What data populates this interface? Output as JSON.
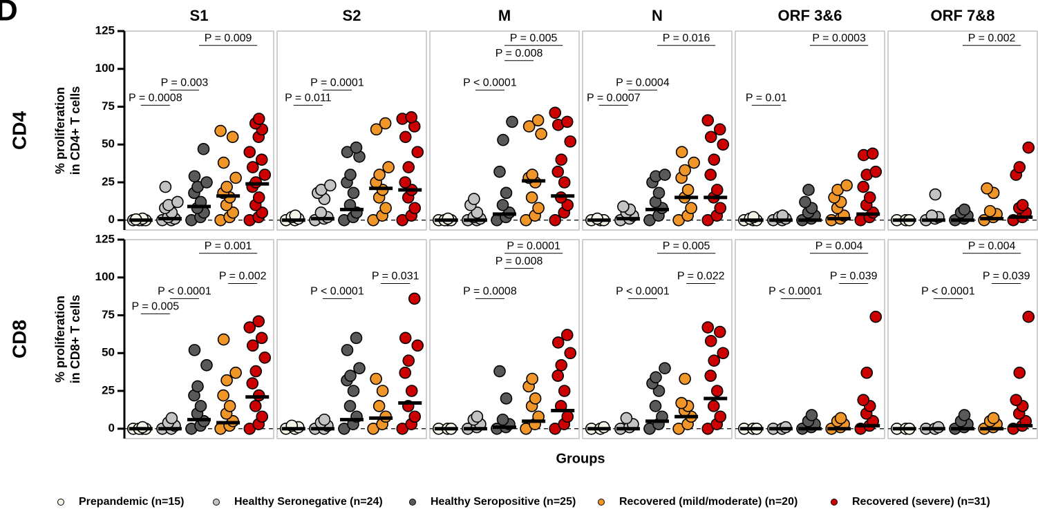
{
  "panel_label": "D",
  "xlabel": "Groups",
  "legend": [
    {
      "name": "Prepandemic (n=15)",
      "color": "#f4f4e8"
    },
    {
      "name": "Healthy Seronegative (n=24)",
      "color": "#c3c3c3"
    },
    {
      "name": "Healthy Seropositive (n=25)",
      "color": "#595959"
    },
    {
      "name": "Recovered (mild/moderate) (n=20)",
      "color": "#f09628"
    },
    {
      "name": "Recovered (severe) (n=31)",
      "color": "#cc0000"
    }
  ],
  "chart_data": [
    {
      "type": "strip",
      "title": "S1",
      "row_label": "CD4",
      "ylabel": [
        "% proliferation",
        "in CD4+ T cells"
      ],
      "ylim": [
        -6.5,
        125
      ],
      "yticks": [
        0,
        25,
        50,
        75,
        100,
        125
      ],
      "hline": 0,
      "series": [
        {
          "values": [
            0,
            0,
            0,
            0,
            1,
            0.5
          ],
          "median": 0
        },
        {
          "values": [
            0,
            0,
            1,
            2,
            5,
            8,
            10,
            12,
            22
          ],
          "median": 1
        },
        {
          "values": [
            0,
            2,
            5,
            8,
            12,
            18,
            22,
            25,
            29,
            47
          ],
          "median": 9
        },
        {
          "values": [
            0,
            2,
            5,
            10,
            15,
            18,
            22,
            28,
            38,
            55,
            59
          ],
          "median": 16
        },
        {
          "values": [
            0,
            2,
            5,
            10,
            15,
            22,
            25,
            30,
            35,
            40,
            45,
            55,
            60,
            64,
            67
          ],
          "median": 24
        }
      ],
      "annotations": [
        {
          "text": "P = 0.009",
          "x": [
            2,
            4
          ],
          "y": 115.5
        },
        {
          "text": "P = 0.003",
          "x": [
            1,
            2
          ],
          "y": 86
        },
        {
          "text": "P = 0.0008",
          "x": [
            0,
            1
          ],
          "y": 76
        }
      ]
    },
    {
      "type": "strip",
      "title": "S2",
      "ylim": [
        -6.5,
        125
      ],
      "hline": 0,
      "series": [
        {
          "values": [
            0,
            0,
            1,
            2,
            3
          ],
          "median": 0
        },
        {
          "values": [
            0,
            1,
            2,
            5,
            14,
            18,
            20,
            23
          ],
          "median": 1
        },
        {
          "values": [
            0,
            2,
            5,
            10,
            18,
            25,
            30,
            42,
            45,
            48
          ],
          "median": 7
        },
        {
          "values": [
            0,
            3,
            8,
            15,
            20,
            25,
            30,
            35,
            60,
            64
          ],
          "median": 21
        },
        {
          "values": [
            0,
            3,
            8,
            15,
            20,
            25,
            35,
            45,
            55,
            62,
            67,
            68
          ],
          "median": 20
        }
      ],
      "annotations": [
        {
          "text": "P = 0.0001",
          "x": [
            1,
            2
          ],
          "y": 86
        },
        {
          "text": "P = 0.011",
          "x": [
            0,
            1
          ],
          "y": 76
        }
      ]
    },
    {
      "type": "strip",
      "title": "M",
      "ylim": [
        -6.5,
        125
      ],
      "hline": 0,
      "series": [
        {
          "values": [
            0,
            0,
            0,
            0,
            1
          ],
          "median": 0
        },
        {
          "values": [
            0,
            0,
            1,
            2,
            5,
            10,
            14
          ],
          "median": 0
        },
        {
          "values": [
            0,
            2,
            5,
            10,
            18,
            32,
            53,
            65
          ],
          "median": 4
        },
        {
          "values": [
            0,
            3,
            8,
            15,
            25,
            28,
            30,
            57,
            62,
            66
          ],
          "median": 26
        },
        {
          "values": [
            0,
            5,
            10,
            15,
            25,
            32,
            40,
            52,
            63,
            65,
            71
          ],
          "median": 16
        }
      ],
      "annotations": [
        {
          "text": "P = 0.005",
          "x": [
            2,
            4
          ],
          "y": 115.5
        },
        {
          "text": "P = 0.008",
          "x": [
            2,
            3
          ],
          "y": 105.5
        },
        {
          "text": "P < 0.0001",
          "x": [
            1,
            2
          ],
          "y": 86
        }
      ]
    },
    {
      "type": "strip",
      "title": "N",
      "ylim": [
        -6.5,
        125
      ],
      "hline": 0,
      "series": [
        {
          "values": [
            0,
            0,
            0,
            1
          ],
          "median": 0
        },
        {
          "values": [
            0,
            1,
            3,
            5,
            7,
            9
          ],
          "median": 1
        },
        {
          "values": [
            0,
            3,
            8,
            12,
            18,
            25,
            29,
            30
          ],
          "median": 7
        },
        {
          "values": [
            0,
            3,
            8,
            15,
            20,
            28,
            33,
            38,
            45
          ],
          "median": 15
        },
        {
          "values": [
            0,
            3,
            8,
            15,
            20,
            30,
            40,
            50,
            55,
            60,
            66
          ],
          "median": 15
        }
      ],
      "annotations": [
        {
          "text": "P = 0.016",
          "x": [
            2,
            4
          ],
          "y": 115.5
        },
        {
          "text": "P = 0.0004",
          "x": [
            1,
            2
          ],
          "y": 86
        },
        {
          "text": "P = 0.0007",
          "x": [
            0,
            1
          ],
          "y": 76
        }
      ]
    },
    {
      "type": "strip",
      "title": "ORF 3&6",
      "ylim": [
        -6.5,
        125
      ],
      "hline": 0,
      "series": [
        {
          "values": [
            0,
            0,
            0,
            1,
            2
          ],
          "median": 0
        },
        {
          "values": [
            0,
            0,
            1,
            2,
            3
          ],
          "median": 0
        },
        {
          "values": [
            0,
            1,
            3,
            5,
            8,
            12,
            20
          ],
          "median": 0
        },
        {
          "values": [
            0,
            1,
            3,
            8,
            12,
            15,
            20,
            23
          ],
          "median": 1
        },
        {
          "values": [
            0,
            2,
            5,
            10,
            15,
            22,
            30,
            32,
            43,
            44
          ],
          "median": 4
        }
      ],
      "annotations": [
        {
          "text": "P = 0.0003",
          "x": [
            2,
            4
          ],
          "y": 115.5
        },
        {
          "text": "P = 0.01",
          "x": [
            0,
            1
          ],
          "y": 76
        }
      ]
    },
    {
      "type": "strip",
      "title": "ORF 7&8",
      "ylim": [
        -6.5,
        125
      ],
      "hline": 0,
      "series": [
        {
          "values": [
            0,
            0,
            0
          ],
          "median": 0
        },
        {
          "values": [
            0,
            1,
            2,
            3,
            17
          ],
          "median": 0
        },
        {
          "values": [
            0,
            1,
            3,
            5,
            7
          ],
          "median": 0
        },
        {
          "values": [
            0,
            2,
            4,
            6,
            18,
            21
          ],
          "median": 1
        },
        {
          "values": [
            0,
            2,
            5,
            8,
            10,
            30,
            35,
            48
          ],
          "median": 2
        }
      ],
      "annotations": [
        {
          "text": "P = 0.002",
          "x": [
            2,
            4
          ],
          "y": 115.5
        }
      ]
    },
    {
      "type": "strip",
      "row_label": "CD8",
      "ylabel": [
        "% proliferation",
        "in CD8+ T cells"
      ],
      "ylim": [
        -6.5,
        125
      ],
      "yticks": [
        0,
        25,
        50,
        75,
        100,
        125
      ],
      "hline": 0,
      "series": [
        {
          "values": [
            0,
            0,
            0,
            0,
            1
          ],
          "median": 0
        },
        {
          "values": [
            0,
            0,
            2,
            4,
            7
          ],
          "median": 0
        },
        {
          "values": [
            0,
            2,
            5,
            10,
            15,
            22,
            28,
            42,
            52
          ],
          "median": 6
        },
        {
          "values": [
            0,
            2,
            5,
            10,
            15,
            22,
            32,
            37,
            59
          ],
          "median": 4
        },
        {
          "values": [
            0,
            3,
            8,
            15,
            22,
            30,
            38,
            47,
            55,
            60,
            67,
            71
          ],
          "median": 21
        }
      ],
      "annotations": [
        {
          "text": "P = 0.001",
          "x": [
            2,
            4
          ],
          "y": 116
        },
        {
          "text": "P = 0.002",
          "x": [
            3,
            4
          ],
          "y": 96
        },
        {
          "text": "P < 0.0001",
          "x": [
            1,
            2
          ],
          "y": 86
        },
        {
          "text": "P = 0.005",
          "x": [
            0,
            1
          ],
          "y": 76
        }
      ]
    },
    {
      "type": "strip",
      "ylim": [
        -6.5,
        125
      ],
      "hline": 0,
      "series": [
        {
          "values": [
            0,
            0,
            1,
            2
          ],
          "median": 0
        },
        {
          "values": [
            0,
            0,
            2,
            4,
            6
          ],
          "median": 0
        },
        {
          "values": [
            0,
            3,
            8,
            15,
            25,
            32,
            35,
            40,
            52,
            60
          ],
          "median": 6
        },
        {
          "values": [
            0,
            3,
            8,
            15,
            25,
            33
          ],
          "median": 7
        },
        {
          "values": [
            0,
            3,
            8,
            15,
            25,
            37,
            45,
            55,
            60,
            86
          ],
          "median": 17
        }
      ],
      "annotations": [
        {
          "text": "P = 0.031",
          "x": [
            3,
            4
          ],
          "y": 96
        },
        {
          "text": "P < 0.0001",
          "x": [
            1,
            2
          ],
          "y": 86
        }
      ]
    },
    {
      "type": "strip",
      "ylim": [
        -6.5,
        125
      ],
      "hline": 0,
      "series": [
        {
          "values": [
            0,
            0,
            0
          ],
          "median": 0
        },
        {
          "values": [
            0,
            1,
            3,
            6,
            8
          ],
          "median": 0
        },
        {
          "values": [
            0,
            1,
            3,
            6,
            20,
            38
          ],
          "median": 1
        },
        {
          "values": [
            0,
            3,
            8,
            15,
            20,
            28,
            33
          ],
          "median": 5
        },
        {
          "values": [
            0,
            3,
            8,
            15,
            25,
            35,
            42,
            50,
            57,
            62
          ],
          "median": 12
        }
      ],
      "annotations": [
        {
          "text": "P = 0.0001",
          "x": [
            2,
            4
          ],
          "y": 116
        },
        {
          "text": "P = 0.008",
          "x": [
            2,
            3
          ],
          "y": 106
        },
        {
          "text": "P = 0.0008",
          "x": [
            1,
            2
          ],
          "y": 86
        }
      ]
    },
    {
      "type": "strip",
      "ylim": [
        -6.5,
        125
      ],
      "hline": 0,
      "series": [
        {
          "values": [
            0,
            0,
            1
          ],
          "median": 0
        },
        {
          "values": [
            0,
            1,
            3,
            7
          ],
          "median": 0
        },
        {
          "values": [
            0,
            3,
            8,
            15,
            25,
            30,
            34,
            40
          ],
          "median": 5
        },
        {
          "values": [
            0,
            3,
            8,
            12,
            15,
            17,
            33
          ],
          "median": 8
        },
        {
          "values": [
            0,
            3,
            8,
            15,
            25,
            35,
            45,
            50,
            58,
            64,
            67
          ],
          "median": 20
        }
      ],
      "annotations": [
        {
          "text": "P = 0.005",
          "x": [
            2,
            4
          ],
          "y": 116
        },
        {
          "text": "P = 0.022",
          "x": [
            3,
            4
          ],
          "y": 96
        },
        {
          "text": "P < 0.0001",
          "x": [
            1,
            2
          ],
          "y": 86
        }
      ]
    },
    {
      "type": "strip",
      "ylim": [
        -6.5,
        125
      ],
      "hline": 0,
      "series": [
        {
          "values": [
            0,
            0,
            0
          ],
          "median": 0
        },
        {
          "values": [
            0,
            0,
            1
          ],
          "median": 0
        },
        {
          "values": [
            0,
            1,
            3,
            5,
            9
          ],
          "median": 0
        },
        {
          "values": [
            0,
            1,
            3,
            5,
            7
          ],
          "median": 0
        },
        {
          "values": [
            0,
            2,
            5,
            10,
            15,
            19,
            37,
            74
          ],
          "median": 2
        }
      ],
      "annotations": [
        {
          "text": "P = 0.004",
          "x": [
            2,
            4
          ],
          "y": 116
        },
        {
          "text": "P = 0.039",
          "x": [
            3,
            4
          ],
          "y": 96
        },
        {
          "text": "P < 0.0001",
          "x": [
            1,
            2
          ],
          "y": 86
        }
      ]
    },
    {
      "type": "strip",
      "ylim": [
        -6.5,
        125
      ],
      "hline": 0,
      "series": [
        {
          "values": [
            0,
            0,
            0
          ],
          "median": 0
        },
        {
          "values": [
            0,
            0,
            1
          ],
          "median": 0
        },
        {
          "values": [
            0,
            1,
            3,
            5,
            9
          ],
          "median": 0
        },
        {
          "values": [
            0,
            1,
            3,
            5,
            7
          ],
          "median": 0
        },
        {
          "values": [
            0,
            2,
            5,
            10,
            15,
            19,
            37,
            74
          ],
          "median": 2
        }
      ],
      "annotations": [
        {
          "text": "P = 0.004",
          "x": [
            2,
            4
          ],
          "y": 116
        },
        {
          "text": "P = 0.039",
          "x": [
            3,
            4
          ],
          "y": 96
        },
        {
          "text": "P < 0.0001",
          "x": [
            1,
            2
          ],
          "y": 86
        }
      ]
    }
  ]
}
